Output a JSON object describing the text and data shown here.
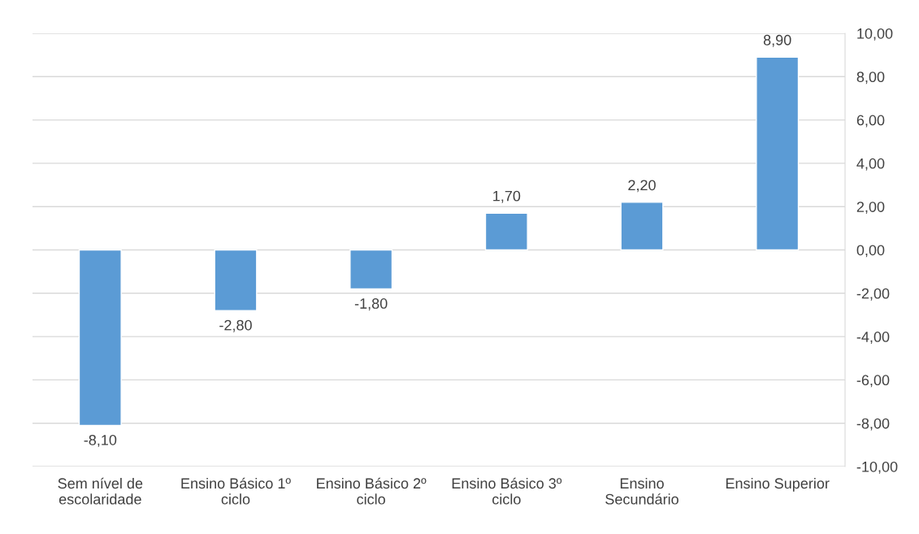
{
  "chart_data": {
    "type": "bar",
    "categories": [
      "Sem nível de\nescolaridade",
      "Ensino Básico 1º\nciclo",
      "Ensino Básico 2º\nciclo",
      "Ensino Básico 3º\nciclo",
      "Ensino\nSecundário",
      "Ensino Superior"
    ],
    "values": [
      -8.1,
      -2.8,
      -1.8,
      1.7,
      2.2,
      8.9
    ],
    "value_labels": [
      "-8,10",
      "-2,80",
      "-1,80",
      "1,70",
      "2,20",
      "8,90"
    ],
    "color": "#5b9bd5",
    "ylim": [
      -10,
      10
    ],
    "yticks": [
      {
        "value": -10,
        "label": "-10,00"
      },
      {
        "value": -8,
        "label": "-8,00"
      },
      {
        "value": -6,
        "label": "-6,00"
      },
      {
        "value": -4,
        "label": "-4,00"
      },
      {
        "value": -2,
        "label": "-2,00"
      },
      {
        "value": 0,
        "label": "0,00"
      },
      {
        "value": 2,
        "label": "2,00"
      },
      {
        "value": 4,
        "label": "4,00"
      },
      {
        "value": 6,
        "label": "6,00"
      },
      {
        "value": 8,
        "label": "8,00"
      },
      {
        "value": 10,
        "label": "10,00"
      }
    ],
    "grid": "y"
  }
}
